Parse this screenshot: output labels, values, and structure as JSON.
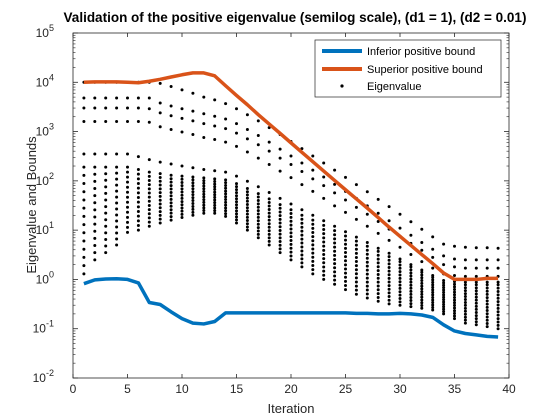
{
  "chart_data": {
    "type": "line",
    "title": "Validation of the positive eigenvalue (semilog scale), (d1 = 1), (d2 = 0.01)",
    "xlabel": "Iteration",
    "ylabel": "Eigenvalue and Bounds",
    "xlim": [
      0,
      40
    ],
    "ylim_log10": [
      -2,
      5
    ],
    "yscale": "log",
    "x_ticks": [
      "0",
      "5",
      "10",
      "15",
      "20",
      "25",
      "30",
      "35",
      "40"
    ],
    "y_ticks": [
      {
        "base": "10",
        "exp": "-2"
      },
      {
        "base": "10",
        "exp": "-1"
      },
      {
        "base": "10",
        "exp": "0"
      },
      {
        "base": "10",
        "exp": "1"
      },
      {
        "base": "10",
        "exp": "2"
      },
      {
        "base": "10",
        "exp": "3"
      },
      {
        "base": "10",
        "exp": "4"
      },
      {
        "base": "10",
        "exp": "5"
      }
    ],
    "legend": {
      "position": "top-right",
      "entries": [
        "Inferior positive bound",
        "Superior positive bound",
        "Eigenvalue"
      ]
    },
    "colors": {
      "inferior": "#0072BD",
      "superior": "#D95319",
      "eigenvalue": "#000000"
    },
    "series": [
      {
        "name": "Inferior positive bound",
        "x": [
          1,
          2,
          3,
          4,
          5,
          6,
          7,
          8,
          9,
          10,
          11,
          12,
          13,
          14,
          15,
          16,
          17,
          18,
          19,
          20,
          21,
          22,
          23,
          24,
          25,
          26,
          27,
          28,
          29,
          30,
          31,
          32,
          33,
          34,
          35,
          36,
          37,
          38,
          39
        ],
        "y": [
          0.82,
          0.98,
          1.02,
          1.03,
          1.0,
          0.85,
          0.34,
          0.31,
          0.22,
          0.16,
          0.13,
          0.125,
          0.14,
          0.21,
          0.21,
          0.21,
          0.21,
          0.21,
          0.21,
          0.21,
          0.21,
          0.21,
          0.21,
          0.21,
          0.21,
          0.205,
          0.205,
          0.2,
          0.2,
          0.205,
          0.2,
          0.19,
          0.17,
          0.12,
          0.09,
          0.08,
          0.075,
          0.07,
          0.068
        ]
      },
      {
        "name": "Superior positive bound",
        "x": [
          1,
          2,
          3,
          4,
          5,
          6,
          7,
          8,
          9,
          10,
          11,
          12,
          13,
          14,
          15,
          16,
          17,
          18,
          19,
          20,
          21,
          22,
          23,
          24,
          25,
          26,
          27,
          28,
          29,
          30,
          31,
          32,
          33,
          34,
          35,
          36,
          37,
          38,
          39
        ],
        "y": [
          10000,
          10200,
          10200,
          10200,
          10000,
          9800,
          10500,
          11500,
          12800,
          14200,
          15500,
          15500,
          13500,
          8500,
          5400,
          3500,
          2200,
          1420,
          920,
          590,
          380,
          245,
          158,
          102,
          66,
          43,
          28,
          18,
          11.5,
          7.5,
          4.9,
          3.2,
          2.1,
          1.35,
          1.0,
          1.0,
          1.0,
          1.05,
          1.05
        ]
      },
      {
        "name": "Eigenvalue",
        "x": [
          1,
          2,
          3,
          4,
          5,
          6,
          7,
          8,
          9,
          10,
          11,
          12,
          13,
          14,
          15,
          16,
          17,
          18,
          19,
          20,
          21,
          22,
          23,
          24,
          25,
          26,
          27,
          28,
          29,
          30,
          31,
          32,
          33,
          34,
          35,
          36,
          37,
          38,
          39
        ],
        "top_levels": [
          [
            10000,
            10000,
            10000,
            10000,
            10000,
            10000,
            10000,
            9500,
            8200,
            7000,
            6000,
            5000,
            4400,
            3700,
            2900,
            2200,
            1650,
            1200,
            870,
            630,
            450,
            320,
            230,
            165,
            118,
            84,
            60,
            42,
            30,
            21,
            14.8,
            10.4,
            7.3,
            5.2,
            4.7,
            4.5,
            4.4,
            4.4,
            4.3
          ],
          [
            4800,
            4800,
            4800,
            4800,
            4800,
            4800,
            4800,
            3800,
            3300,
            2900,
            2600,
            2300,
            2050,
            1800,
            1450,
            1100,
            830,
            610,
            440,
            320,
            230,
            165,
            120,
            85,
            61,
            44,
            31,
            22,
            15.5,
            11,
            7.9,
            5.6,
            4.1,
            3.0,
            2.6,
            2.5,
            2.5,
            2.5,
            2.5
          ],
          [
            3000,
            3000,
            3000,
            3000,
            3000,
            3000,
            2900,
            2400,
            2100,
            1850,
            1650,
            1450,
            1300,
            1150,
            930,
            710,
            540,
            400,
            290,
            215,
            155,
            110,
            80,
            57,
            41,
            29,
            21,
            15,
            10.5,
            7.5,
            5.4,
            3.9,
            2.8,
            2.0,
            1.8,
            1.7,
            1.7,
            1.7,
            1.7
          ],
          [
            1600,
            1600,
            1600,
            1600,
            1600,
            1600,
            1550,
            1250,
            1100,
            980,
            870,
            760,
            690,
            610,
            500,
            385,
            290,
            215,
            158,
            116,
            84,
            61,
            44,
            31,
            23,
            16.5,
            12,
            8.6,
            6.2,
            4.5,
            3.2,
            2.3,
            1.7,
            1.3,
            1.2,
            1.15,
            1.15,
            1.15,
            1.15
          ],
          [
            350,
            350,
            350,
            350,
            350,
            310,
            270,
            240,
            220,
            200,
            185,
            170,
            160,
            150,
            125,
            98,
            76,
            58,
            44,
            34,
            26,
            20,
            15.5,
            12,
            9.3,
            7.2,
            5.6,
            4.3,
            3.4,
            2.6,
            2.0,
            1.55,
            1.2,
            0.95,
            0.9,
            0.88,
            0.88,
            0.88,
            0.88
          ]
        ],
        "cluster_lower": [
          1.3,
          2.5,
          3.5,
          5,
          9,
          10,
          12,
          14,
          16,
          18,
          20,
          22,
          22,
          19,
          14,
          10,
          7,
          5,
          3.5,
          2.5,
          1.8,
          1.3,
          1,
          0.8,
          0.62,
          0.5,
          0.42,
          0.36,
          0.32,
          0.3,
          0.28,
          0.26,
          0.24,
          0.2,
          0.16,
          0.13,
          0.12,
          0.11,
          0.1
        ],
        "cluster_upper": [
          190,
          190,
          190,
          190,
          190,
          170,
          150,
          140,
          130,
          125,
          120,
          115,
          110,
          105,
          88,
          70,
          55,
          43,
          33,
          26,
          20,
          16,
          12.5,
          9.8,
          7.6,
          6,
          4.7,
          3.7,
          2.9,
          2.3,
          1.8,
          1.4,
          1.1,
          0.85,
          0.8,
          0.78,
          0.78,
          0.78,
          0.78
        ]
      }
    ]
  }
}
